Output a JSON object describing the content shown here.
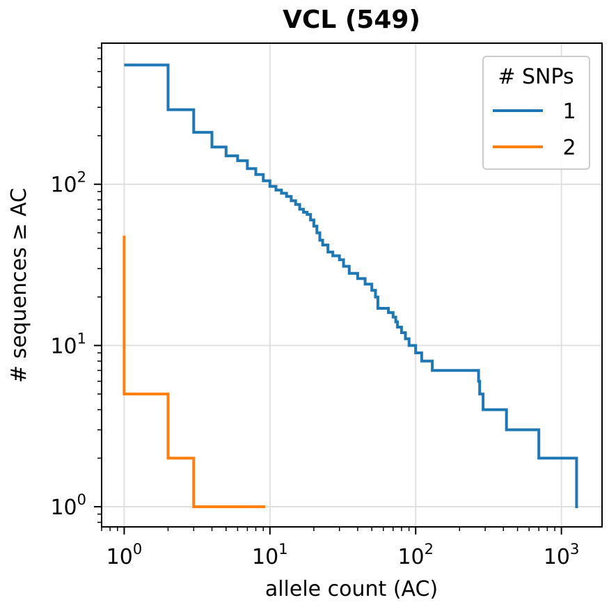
{
  "chart_data": {
    "type": "line",
    "title": "VCL (549)",
    "xlabel": "allele count (AC)",
    "ylabel": "# sequences ≥ AC",
    "xscale": "log",
    "yscale": "log",
    "xlim": [
      0.7,
      1900
    ],
    "ylim": [
      0.75,
      750
    ],
    "grid": true,
    "legend": {
      "title": "# SNPs",
      "placement": "top-right"
    },
    "xticks": [
      {
        "base": "10",
        "exp": "0",
        "value": 1
      },
      {
        "base": "10",
        "exp": "1",
        "value": 10
      },
      {
        "base": "10",
        "exp": "2",
        "value": 100
      },
      {
        "base": "10",
        "exp": "3",
        "value": 1000
      }
    ],
    "yticks": [
      {
        "base": "10",
        "exp": "0",
        "value": 1
      },
      {
        "base": "10",
        "exp": "1",
        "value": 10
      },
      {
        "base": "10",
        "exp": "2",
        "value": 100
      }
    ],
    "series": [
      {
        "name": "1",
        "color": "#1f77b4",
        "x": [
          1,
          2,
          3,
          4,
          5,
          6,
          7,
          8,
          9,
          10,
          11,
          12,
          13,
          14,
          15,
          16,
          17,
          18,
          19,
          20,
          21,
          22,
          23,
          25,
          27,
          30,
          32,
          35,
          40,
          45,
          50,
          53,
          55,
          60,
          65,
          70,
          73,
          75,
          80,
          85,
          90,
          100,
          110,
          130,
          150,
          200,
          270,
          275,
          280,
          290,
          420,
          700,
          1270,
          1300
        ],
        "y": [
          549,
          290,
          210,
          170,
          150,
          140,
          125,
          115,
          105,
          97,
          92,
          88,
          84,
          79,
          75,
          70,
          67,
          65,
          60,
          55,
          50,
          45,
          42,
          38,
          36,
          34,
          31,
          28,
          26,
          24,
          22,
          20,
          17,
          17,
          16,
          15,
          14,
          13,
          12,
          11,
          10,
          9,
          8,
          7,
          7,
          7,
          6,
          5,
          5,
          4,
          3,
          2,
          1,
          1
        ]
      },
      {
        "name": "2",
        "color": "#ff7f0e",
        "x": [
          1,
          1,
          2,
          3,
          9.3
        ],
        "y": [
          48,
          5,
          2,
          1,
          1
        ]
      }
    ]
  }
}
